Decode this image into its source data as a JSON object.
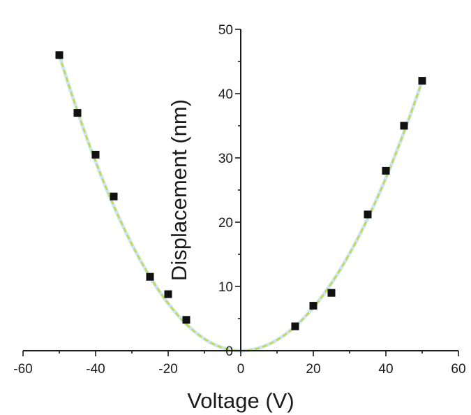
{
  "chart_data": {
    "type": "scatter",
    "title": "",
    "xlabel": "Voltage (V)",
    "ylabel": "Displacement (nm)",
    "xlim": [
      -60,
      60
    ],
    "ylim": [
      0,
      50
    ],
    "x_ticks": [
      -60,
      -40,
      -20,
      0,
      20,
      40,
      60
    ],
    "y_ticks": [
      0,
      10,
      20,
      30,
      40,
      50
    ],
    "x_tick_labels": [
      "-60",
      "-40",
      "-20",
      "0",
      "20",
      "40",
      "60"
    ],
    "y_tick_labels": [
      "0",
      "10",
      "20",
      "30",
      "40",
      "50"
    ],
    "grid": false,
    "legend": "none",
    "series": [
      {
        "kind": "points",
        "marker": "square",
        "color": "#111111",
        "x": [
          -50,
          -45,
          -40,
          -35,
          -25,
          -20,
          -15,
          15,
          20,
          25,
          35,
          40,
          45,
          50
        ],
        "y": [
          46,
          37,
          30.5,
          24,
          11.5,
          8.8,
          4.8,
          3.8,
          7,
          9,
          21.2,
          28,
          35,
          42
        ]
      },
      {
        "kind": "fit-line",
        "style": "dashed",
        "color": "#c8d64a",
        "halo_color": "#9fd3e8",
        "model": "y = a * x^2",
        "a_left": 0.0184,
        "a_right": 0.0168
      }
    ]
  }
}
